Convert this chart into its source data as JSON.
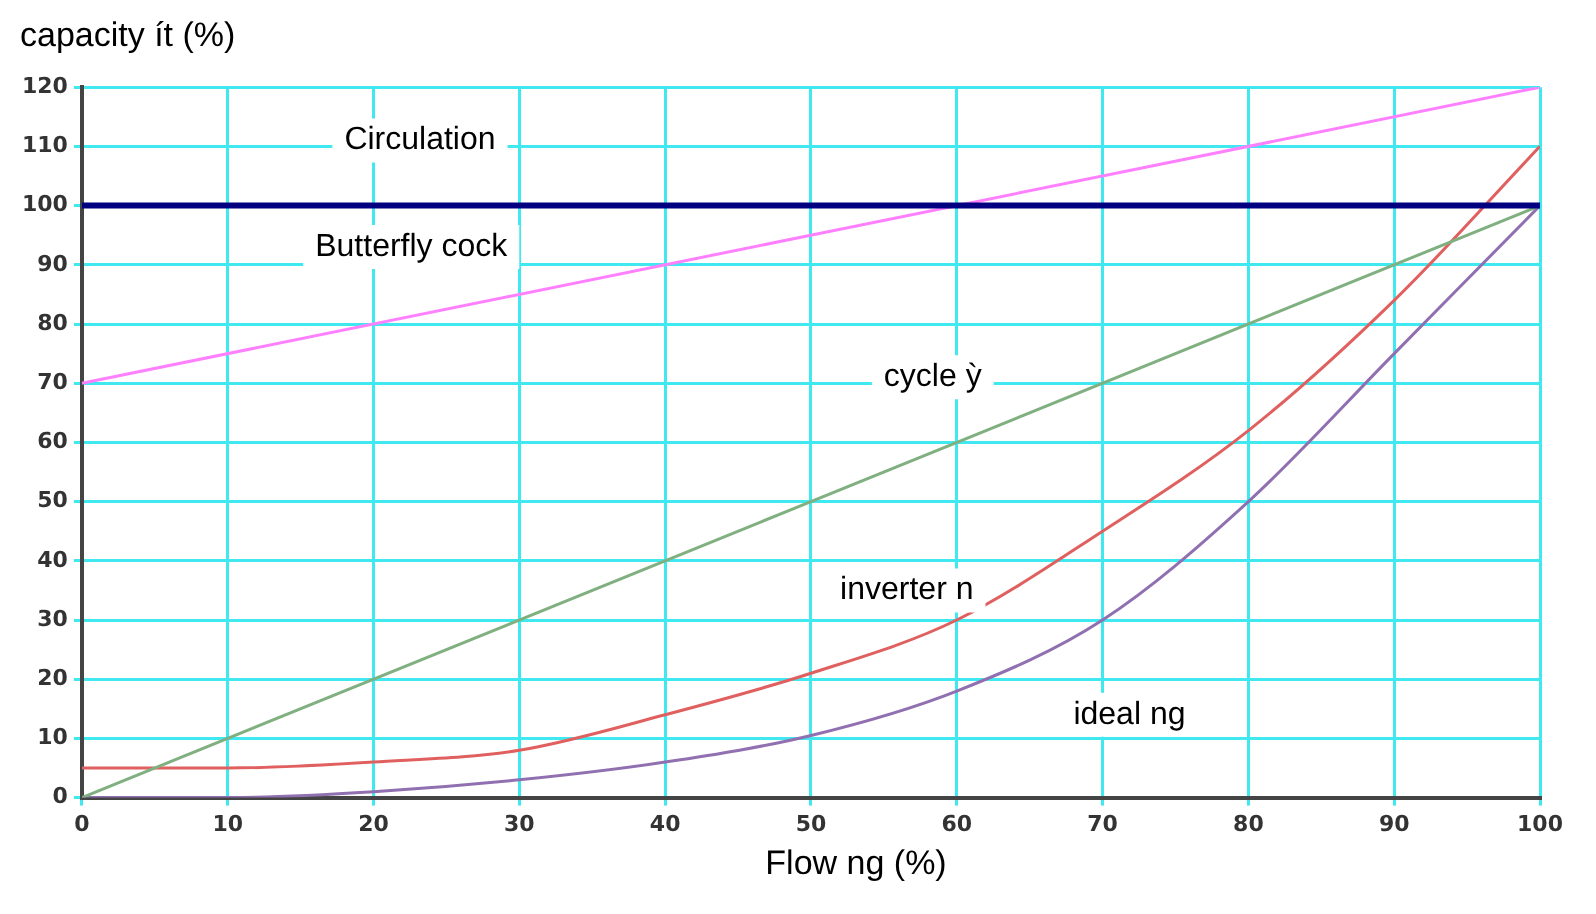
{
  "chart_data": {
    "type": "line",
    "xlabel": "Flow ng (%)",
    "ylabel": "capacity ít (%)",
    "xlim": [
      0,
      100
    ],
    "ylim": [
      0,
      120
    ],
    "xticks": [
      0,
      10,
      20,
      30,
      40,
      50,
      60,
      70,
      80,
      90,
      100
    ],
    "yticks": [
      0,
      10,
      20,
      30,
      40,
      50,
      60,
      70,
      80,
      90,
      100,
      110,
      120
    ],
    "grid": true,
    "legend": false,
    "marker": "none",
    "line_style": "solid",
    "series": [
      {
        "name": "Circulation",
        "color": "#000080",
        "x": [
          0,
          100
        ],
        "values": [
          100,
          100
        ]
      },
      {
        "name": "Butterfly cock",
        "color": "#ff80ff",
        "x": [
          0,
          100
        ],
        "values": [
          70,
          120
        ]
      },
      {
        "name": "cycle ỳ",
        "color": "#80b080",
        "x": [
          0,
          100
        ],
        "values": [
          0,
          100
        ]
      },
      {
        "name": "inverter n",
        "color": "#e06060",
        "x": [
          0,
          10,
          20,
          30,
          40,
          50,
          60,
          70,
          80,
          90,
          100
        ],
        "values": [
          5,
          5,
          6,
          8,
          14,
          21,
          30,
          45,
          62,
          84,
          110
        ]
      },
      {
        "name": "ideal ng",
        "color": "#9070b0",
        "x": [
          0,
          10,
          20,
          30,
          40,
          50,
          60,
          70,
          80,
          90,
          100
        ],
        "values": [
          0,
          0,
          1,
          3,
          6,
          10.5,
          18,
          30,
          50,
          75,
          100
        ]
      }
    ]
  }
}
